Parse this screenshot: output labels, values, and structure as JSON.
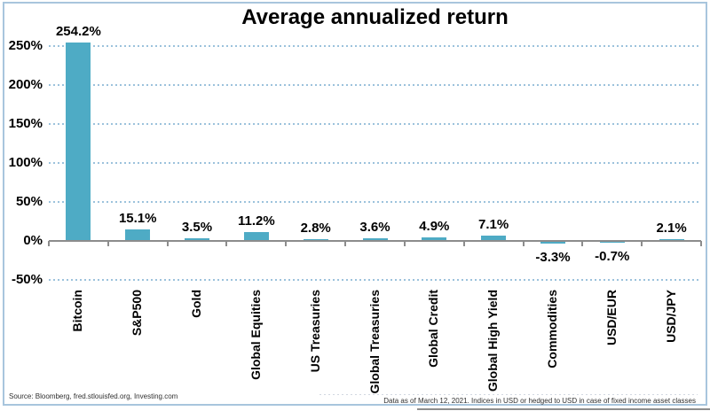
{
  "page": {
    "footer_source": "Source: Bloomberg, fred.stlouisfed.org, Investing.com",
    "footer_note": "Data as of March 12, 2021. Indices in USD or hedged to USD in case of fixed income asset classes"
  },
  "chart_data": {
    "type": "bar",
    "title": "Average annualized return",
    "categories": [
      "Bitcoin",
      "S&P500",
      "Gold",
      "Global Equities",
      "US Treasuries",
      "Global Treasuries",
      "Global Credit",
      "Global High Yield",
      "Commodities",
      "USD/EUR",
      "USD/JPY"
    ],
    "values": [
      254.2,
      15.1,
      3.5,
      11.2,
      2.8,
      3.6,
      4.9,
      7.1,
      -3.3,
      -0.7,
      2.1
    ],
    "data_labels": [
      "254.2%",
      "15.1%",
      "3.5%",
      "11.2%",
      "2.8%",
      "3.6%",
      "4.9%",
      "7.1%",
      "-3.3%",
      "-0.7%",
      "2.1%"
    ],
    "unit": "%",
    "yticks": [
      250,
      200,
      150,
      100,
      50,
      0,
      -50
    ],
    "ytick_labels": [
      "250%",
      "200%",
      "150%",
      "100%",
      "50%",
      "0%",
      "-50%"
    ],
    "ylim": [
      -60,
      275
    ],
    "xlabel": "",
    "ylabel": "",
    "legend": null,
    "grid": "horizontal-dotted",
    "category_label_rotation": 90,
    "colors": {
      "bar": "#4EABC5",
      "gridline": "#9CC2DC",
      "axis": "#8C8C8C",
      "frame_border": "#A8C5DD",
      "title_text": "#000000",
      "label_text": "#000000",
      "footer_text": "#303030"
    }
  }
}
